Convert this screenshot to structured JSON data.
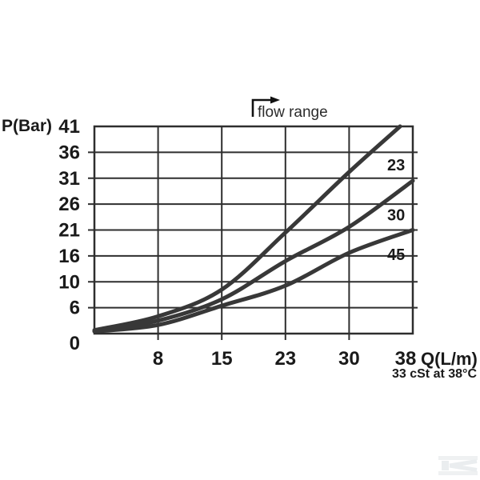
{
  "chart_data": {
    "type": "line",
    "title": "",
    "ylabel": "P(Bar)",
    "xlabel": "Q(L/m)",
    "footnote": "33 cSt at 38°C",
    "annotation": "flow range",
    "grid": true,
    "x_axis": {
      "range": [
        0,
        38
      ],
      "ticks": [
        {
          "value": 0,
          "label": "",
          "tick": false
        },
        {
          "value": 8,
          "label": "8",
          "tick": true
        },
        {
          "value": 15,
          "label": "15",
          "tick": true
        },
        {
          "value": 23,
          "label": "23",
          "tick": true
        },
        {
          "value": 30,
          "label": "30",
          "tick": true
        },
        {
          "value": 38,
          "label": "38",
          "tick": false
        }
      ]
    },
    "y_axis": {
      "range": [
        0,
        41
      ],
      "ticks": [
        {
          "value": 0,
          "label": "0"
        },
        {
          "value": 6,
          "label": "6"
        },
        {
          "value": 10,
          "label": "10"
        },
        {
          "value": 16,
          "label": "16"
        },
        {
          "value": 21,
          "label": "21"
        },
        {
          "value": 26,
          "label": "26"
        },
        {
          "value": 31,
          "label": "31"
        },
        {
          "value": 36,
          "label": "36"
        },
        {
          "value": 41,
          "label": "41"
        }
      ]
    },
    "series": [
      {
        "name": "23",
        "points": [
          [
            0,
            0.8
          ],
          [
            8,
            4.0
          ],
          [
            15,
            8.8
          ],
          [
            23,
            20.5
          ],
          [
            30,
            32.2
          ],
          [
            36.4,
            41.0
          ]
        ],
        "label_at": [
          35.9,
          33.6
        ]
      },
      {
        "name": "30",
        "points": [
          [
            0,
            0.6
          ],
          [
            8,
            3.0
          ],
          [
            15,
            7.3
          ],
          [
            23,
            14.8
          ],
          [
            30,
            21.6
          ],
          [
            38,
            30.5
          ]
        ],
        "label_at": [
          35.9,
          23.9
        ]
      },
      {
        "name": "45",
        "points": [
          [
            0,
            0.5
          ],
          [
            8,
            2.0
          ],
          [
            15,
            6.3
          ],
          [
            23,
            9.4
          ],
          [
            30,
            16.6
          ],
          [
            38,
            21.0
          ]
        ],
        "label_at": [
          35.9,
          16.3
        ]
      }
    ],
    "colors": {
      "curve": "#383838",
      "grid": "#2e2e2e",
      "text": "#1a1a1a"
    }
  },
  "watermark": {
    "color_bar": "#eff1f2",
    "color_k": "#eaedef"
  }
}
